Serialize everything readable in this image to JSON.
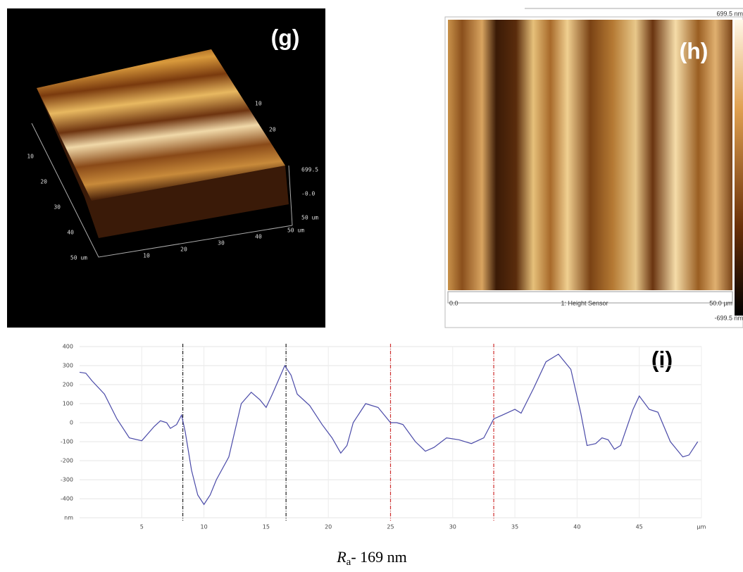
{
  "panel_g": {
    "label": "(g)",
    "left_ticks": [
      "10",
      "20",
      "30",
      "40",
      "50 um"
    ],
    "bottom_ticks": [
      "10",
      "20",
      "30",
      "40",
      "50 um"
    ],
    "back_ticks": [
      "10",
      "20"
    ],
    "z_ticks": [
      "699.5",
      "-0.0",
      "50 um"
    ]
  },
  "panel_h": {
    "label": "(h)",
    "scale_max": "699.5 nm",
    "scale_min": "-699.5 nm",
    "x_start": "0.0",
    "channel": "1: Height Sensor",
    "x_end": "50.0 µm"
  },
  "chart_data": {
    "type": "line",
    "label": "(i)",
    "x": [
      0,
      0.5,
      1,
      2,
      3,
      4,
      5,
      6,
      6.5,
      7,
      7.3,
      7.8,
      8.2,
      8.5,
      9,
      9.5,
      10,
      10.5,
      11,
      12,
      13,
      13.8,
      14.5,
      15,
      15.5,
      16.5,
      17,
      17.5,
      18.5,
      19.5,
      20.3,
      21,
      21.5,
      22,
      23,
      24,
      25,
      25.5,
      26,
      27,
      27.8,
      28.5,
      29.5,
      30.5,
      31.5,
      32.5,
      33.3,
      34,
      35,
      35.5,
      36.5,
      37.5,
      38.5,
      39.5,
      40.3,
      40.8,
      41.5,
      42,
      42.5,
      43,
      43.5,
      44.5,
      45,
      45.8,
      46.5,
      47.5,
      48.5,
      49,
      49.7
    ],
    "series": [
      {
        "color": "#4a4aa8",
        "values": [
          265,
          260,
          220,
          150,
          20,
          -80,
          -95,
          -20,
          10,
          0,
          -30,
          -10,
          40,
          -50,
          -250,
          -380,
          -430,
          -380,
          -300,
          -180,
          100,
          160,
          120,
          80,
          150,
          300,
          250,
          150,
          90,
          -10,
          -80,
          -160,
          -120,
          0,
          100,
          80,
          0,
          0,
          -10,
          -100,
          -150,
          -130,
          -80,
          -90,
          -110,
          -80,
          20,
          40,
          70,
          50,
          180,
          320,
          360,
          280,
          50,
          -120,
          -110,
          -80,
          -90,
          -140,
          -120,
          70,
          140,
          70,
          55,
          -100,
          -180,
          -170,
          -100
        ]
      }
    ],
    "reference_lines": [
      {
        "x": 8.3,
        "color": "#222222"
      },
      {
        "x": 16.6,
        "color": "#222222"
      },
      {
        "x": 25,
        "color": "#d03030"
      },
      {
        "x": 33.3,
        "color": "#d03030"
      }
    ],
    "xlim": [
      0,
      50
    ],
    "xticks": [
      5,
      10,
      15,
      20,
      25,
      30,
      35,
      40,
      45,
      {
        "value": 50,
        "label": "µm"
      }
    ],
    "ylim": [
      -500,
      400
    ],
    "yticks": [
      400,
      300,
      200,
      100,
      0,
      -100,
      -200,
      -300,
      -400,
      {
        "value": -500,
        "label": "nm"
      }
    ],
    "grid": true
  },
  "caption": {
    "symbol": "R",
    "subscript": "a",
    "text": "- 169 nm"
  }
}
